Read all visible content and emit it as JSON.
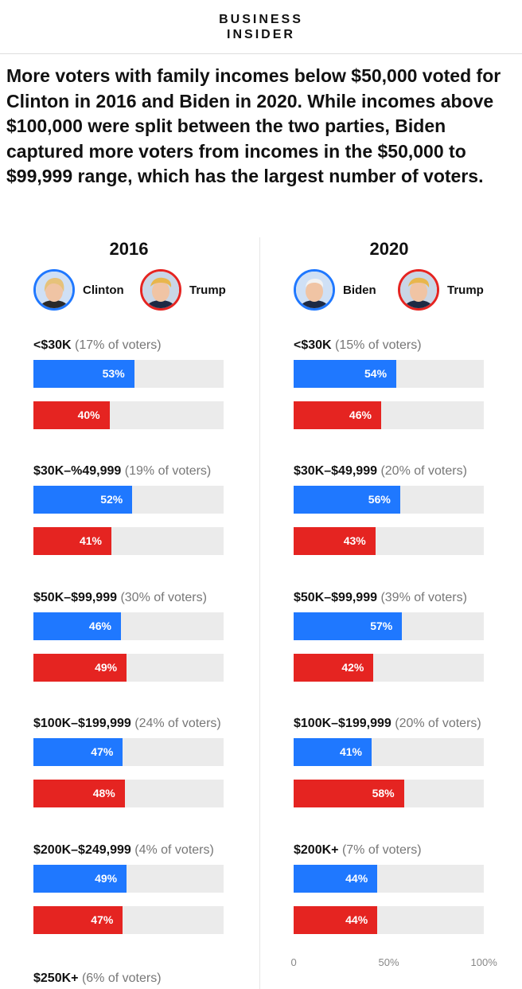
{
  "header": {
    "logo_line1": "BUSINESS",
    "logo_line2": "INSIDER"
  },
  "headline": "More voters with family incomes below $50,000 voted for Clinton in 2016 and Biden in 2020. While incomes above $100,000 were split between the two parties, Biden captured more voters from incomes in the $50,000 to $99,999 range, which has the largest number of voters.",
  "colors": {
    "democrat": "#1f78ff",
    "republican": "#e52421",
    "track": "#ebebeb"
  },
  "chart_data": [
    {
      "type": "bar",
      "title": "2016",
      "legend": [
        {
          "name": "Clinton",
          "party": "dem",
          "icon": "clinton-avatar-icon"
        },
        {
          "name": "Trump",
          "party": "rep",
          "icon": "trump-avatar-icon"
        }
      ],
      "xlim": [
        0,
        100
      ],
      "groups": [
        {
          "label": "<$30K",
          "share": "(17% of voters)",
          "dem": 53,
          "rep": 40
        },
        {
          "label": "$30K–%49,999",
          "share": "(19% of voters)",
          "dem": 52,
          "rep": 41
        },
        {
          "label": "$50K–$99,999",
          "share": "(30% of voters)",
          "dem": 46,
          "rep": 49
        },
        {
          "label": "$100K–$199,999",
          "share": "(24% of voters)",
          "dem": 47,
          "rep": 48
        },
        {
          "label": "$200K–$249,999",
          "share": "(4% of voters)",
          "dem": 49,
          "rep": 47
        },
        {
          "label": "$250K+",
          "share": "(6% of voters)",
          "dem": null,
          "rep": null
        }
      ]
    },
    {
      "type": "bar",
      "title": "2020",
      "legend": [
        {
          "name": "Biden",
          "party": "dem",
          "icon": "biden-avatar-icon"
        },
        {
          "name": "Trump",
          "party": "rep",
          "icon": "trump-avatar-icon"
        }
      ],
      "xlim": [
        0,
        100
      ],
      "axis_ticks": [
        "0",
        "50%",
        "100%"
      ],
      "groups": [
        {
          "label": "<$30K",
          "share": "(15% of voters)",
          "dem": 54,
          "rep": 46
        },
        {
          "label": "$30K–$49,999",
          "share": "(20% of voters)",
          "dem": 56,
          "rep": 43
        },
        {
          "label": "$50K–$99,999",
          "share": "(39% of voters)",
          "dem": 57,
          "rep": 42
        },
        {
          "label": "$100K–$199,999",
          "share": "(20% of voters)",
          "dem": 41,
          "rep": 58
        },
        {
          "label": "$200K+",
          "share": "(7% of voters)",
          "dem": 44,
          "rep": 44
        }
      ]
    }
  ]
}
